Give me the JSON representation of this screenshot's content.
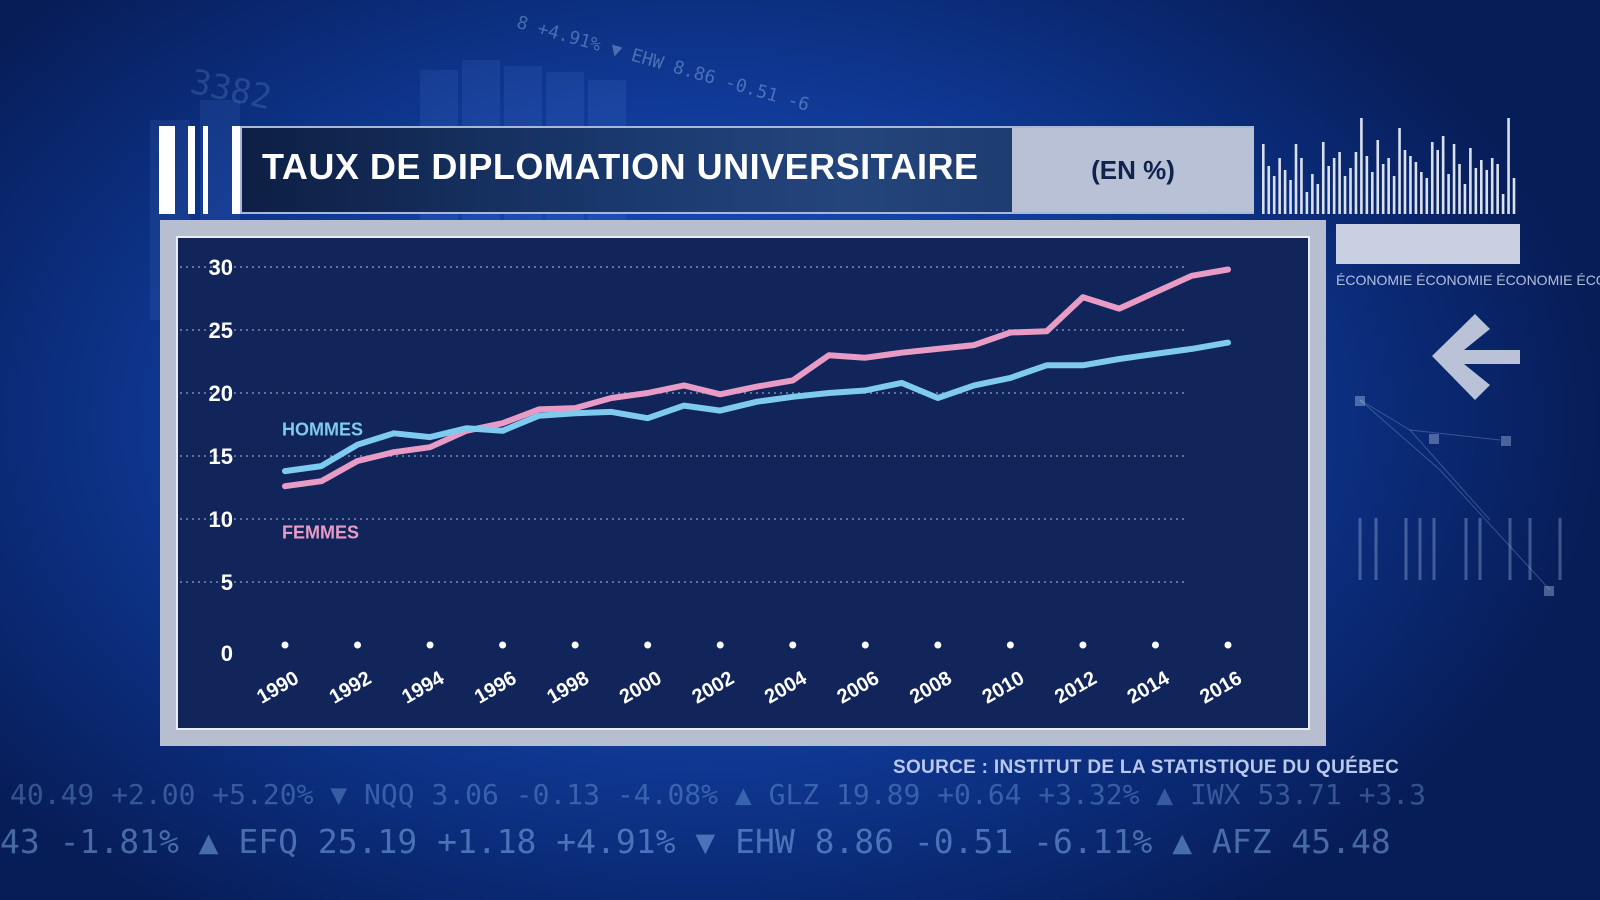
{
  "chart_data": {
    "type": "line",
    "title": "TAUX DE DIPLOMATION UNIVERSITAIRE",
    "unit_label": "(EN %)",
    "xlabel": "",
    "ylabel": "",
    "ylim": [
      0,
      30
    ],
    "yticks": [
      "0",
      "5",
      "10",
      "15",
      "20",
      "25",
      "30"
    ],
    "xlim": [
      1990,
      2016
    ],
    "xtick_labels": [
      "1990",
      "1992",
      "1994",
      "1996",
      "1998",
      "2000",
      "2002",
      "2004",
      "2006",
      "2008",
      "2010",
      "2012",
      "2014",
      "2016"
    ],
    "x": [
      1990,
      1991,
      1992,
      1993,
      1994,
      1995,
      1996,
      1997,
      1998,
      1999,
      2000,
      2001,
      2002,
      2003,
      2004,
      2005,
      2006,
      2007,
      2008,
      2009,
      2010,
      2011,
      2012,
      2013,
      2014,
      2015,
      2016
    ],
    "series": [
      {
        "name": "HOMMES",
        "color": "#7ecbef",
        "values": [
          13.8,
          14.2,
          15.9,
          16.8,
          16.5,
          17.2,
          17.0,
          18.2,
          18.4,
          18.5,
          18.0,
          19.0,
          18.6,
          19.3,
          19.7,
          20.0,
          20.2,
          20.8,
          19.6,
          20.6,
          21.2,
          22.2,
          22.2,
          22.7,
          23.1,
          23.5,
          24.0
        ]
      },
      {
        "name": "FEMMES",
        "color": "#e89cc5",
        "values": [
          12.6,
          13.0,
          14.6,
          15.3,
          15.7,
          17.0,
          17.6,
          18.7,
          18.8,
          19.6,
          20.0,
          20.6,
          19.9,
          20.5,
          21.0,
          23.0,
          22.8,
          23.2,
          23.5,
          23.8,
          24.8,
          24.9,
          27.6,
          26.7,
          28.0,
          29.3,
          29.8
        ]
      }
    ],
    "legend": "inline-left"
  },
  "source": "SOURCE : INSTITUT DE LA STATISTIQUE DU QUÉBEC",
  "side_label": "ÉCONOMIE ÉCONOMIE ÉCONOMIE ÉCONOMIE",
  "ticker_top": "8 +4.91% ▼ EHW 8.86 -0.51 -6",
  "ticker_big": "3382",
  "ticker_line_1": "40.49 +2.00 +5.20% ▼ NQQ 3.06 -0.13 -4.08% ▲ GLZ 19.89 +0.64 +3.32% ▲ IWX 53.71 +3.3",
  "ticker_line_2": "43 -1.81% ▲ EFQ 25.19 +1.18 +4.91% ▼ EHW 8.86 -0.51 -6.11% ▲ AFZ 45.48",
  "colors": {
    "panel": "#11255a",
    "grid": "#8fa0c8",
    "hommes": "#7ecbef",
    "femmes": "#e89cc5"
  }
}
